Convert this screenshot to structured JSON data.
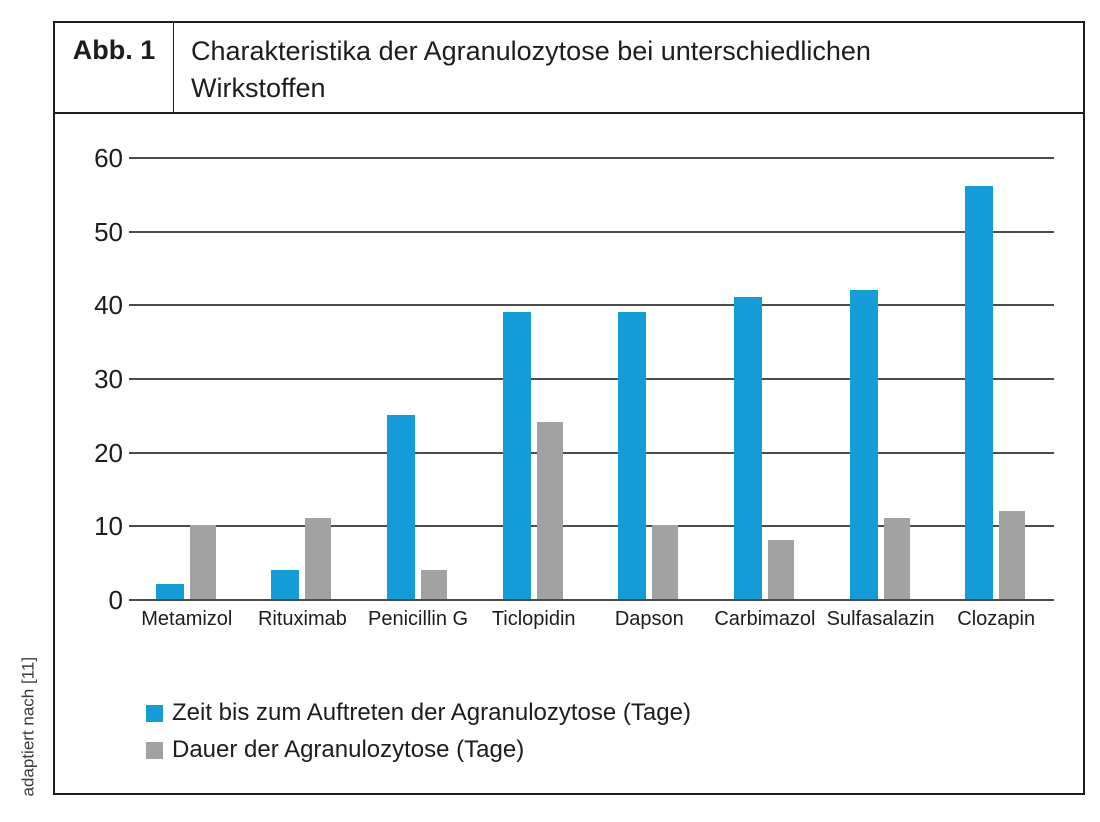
{
  "figure": {
    "label": "Abb. 1",
    "title": "Charakteristika der Agranulozytose bei unterschiedlichen Wirkstoffen",
    "side_note": "adaptiert nach [11]"
  },
  "colors": {
    "series_onset_blue": "#149cd8",
    "series_duration_gray": "#a2a2a2",
    "border_black": "#1d1d1b",
    "gridline_gray": "#4b4b4b",
    "background": "#ffffff"
  },
  "chart_data": {
    "type": "bar",
    "title": "Charakteristika der Agranulozytose bei unterschiedlichen Wirkstoffen",
    "categories": [
      "Metamizol",
      "Rituximab",
      "Penicillin G",
      "Ticlopidin",
      "Dapson",
      "Carbimazol",
      "Sulfasalazin",
      "Clozapin"
    ],
    "series": [
      {
        "name": "Zeit bis zum Auftreten der Agranulozytose (Tage)",
        "color": "#149cd8",
        "values": [
          2,
          4,
          25,
          39,
          39,
          41,
          42,
          56
        ]
      },
      {
        "name": "Dauer der Agranulozytose (Tage)",
        "color": "#a2a2a2",
        "values": [
          10,
          11,
          4,
          24,
          10,
          8,
          11,
          12
        ]
      }
    ],
    "xlabel": "",
    "ylabel": "",
    "ylim": [
      0,
      60
    ],
    "yticks": [
      0,
      10,
      20,
      30,
      40,
      50,
      60
    ],
    "grid": true,
    "legend_position": "bottom-left"
  }
}
